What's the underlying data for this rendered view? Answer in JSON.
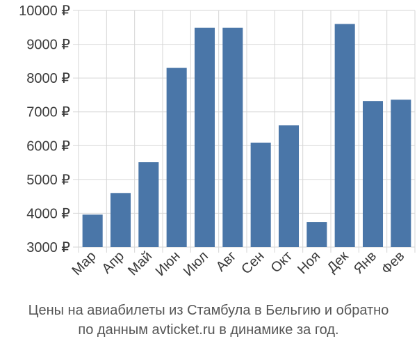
{
  "chart_data": {
    "type": "bar",
    "categories": [
      "Мар",
      "Апр",
      "Май",
      "Июн",
      "Июл",
      "Авг",
      "Сен",
      "Окт",
      "Ноя",
      "Дек",
      "Янв",
      "Фев"
    ],
    "values": [
      3960,
      4600,
      5510,
      8300,
      9490,
      9490,
      6090,
      6600,
      3740,
      9600,
      7320,
      7360
    ],
    "ylim": [
      3000,
      10000
    ],
    "y_ticks": [
      3000,
      4000,
      5000,
      6000,
      7000,
      8000,
      9000,
      10000
    ],
    "y_tick_suffix": " ₽",
    "grid": true,
    "bar_color": "#4a76a8",
    "grid_color": "#d6d6d6"
  },
  "caption": {
    "line1": "Цены на авиабилеты из Стамбула в Бельгию и обратно",
    "line2": "по данным avticket.ru в динамике за год."
  }
}
